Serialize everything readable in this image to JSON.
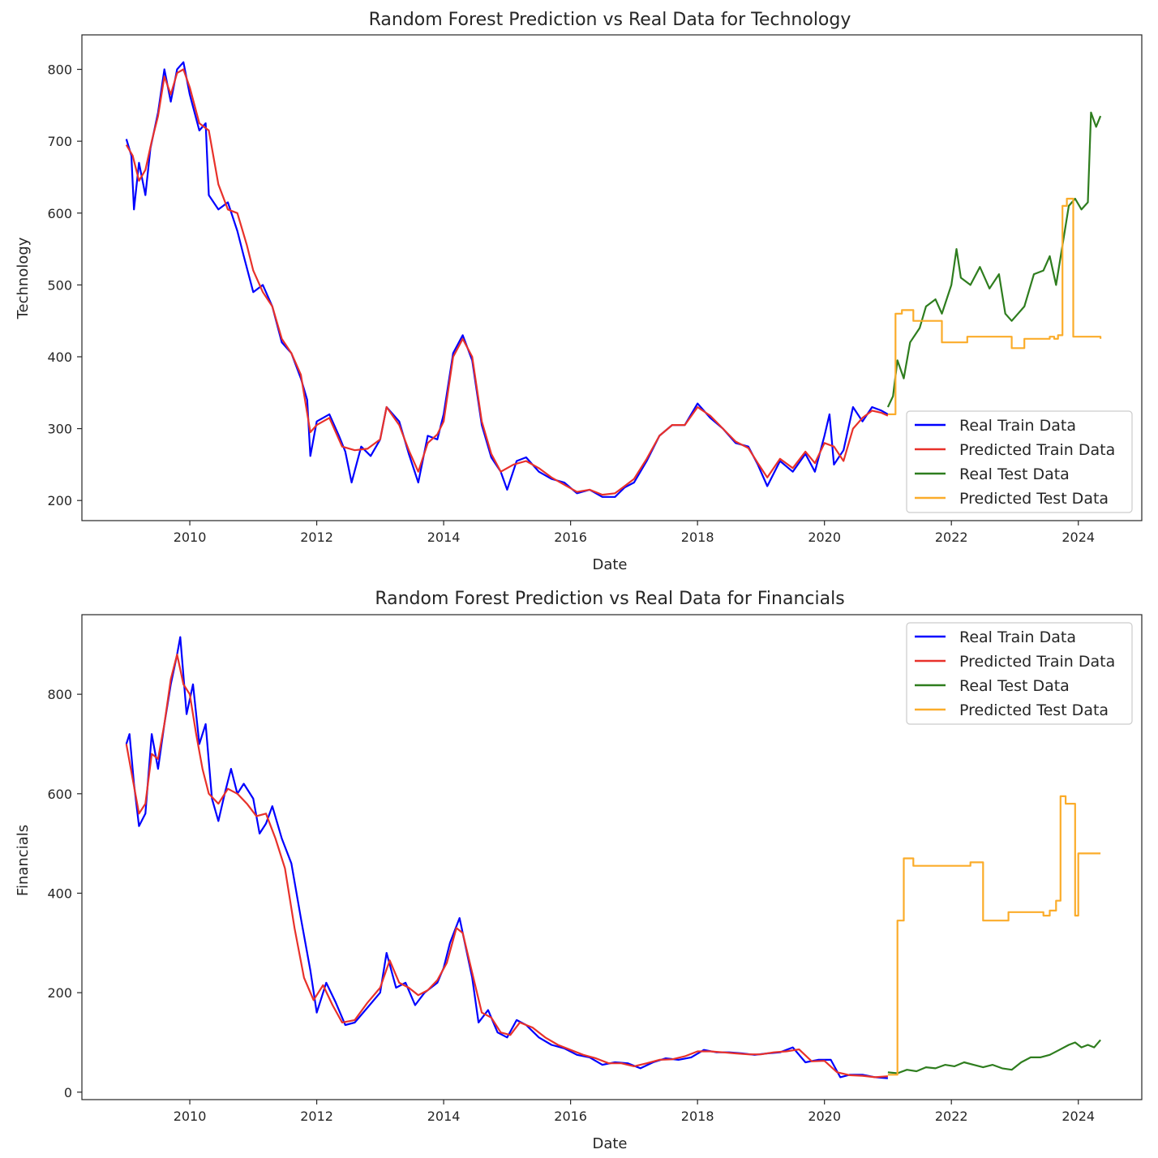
{
  "colors": {
    "real_train": "#0000ff",
    "pred_train": "#e8312a",
    "real_test": "#2e7d1e",
    "pred_test": "#fbac2a",
    "frame": "#262626",
    "legend_border": "#cccccc"
  },
  "chart_data": [
    {
      "type": "line",
      "title": "Random Forest Prediction vs Real Data for Technology",
      "xlabel": "Date",
      "ylabel": "Technology",
      "xlim": [
        2008.3,
        2025.0
      ],
      "ylim": [
        172,
        848
      ],
      "xticks": [
        2010,
        2012,
        2014,
        2016,
        2018,
        2020,
        2022,
        2024
      ],
      "yticks": [
        200,
        300,
        400,
        500,
        600,
        700,
        800
      ],
      "grid": false,
      "legend_position": "lower right",
      "legend": [
        "Real Train Data",
        "Predicted Train Data",
        "Real Test Data",
        "Predicted Test Data"
      ],
      "series": [
        {
          "name": "Real Train Data",
          "color_key": "real_train",
          "x": [
            2009.0,
            2009.08,
            2009.12,
            2009.2,
            2009.3,
            2009.38,
            2009.5,
            2009.6,
            2009.7,
            2009.8,
            2009.9,
            2010.0,
            2010.15,
            2010.25,
            2010.3,
            2010.45,
            2010.6,
            2010.75,
            2010.85,
            2011.0,
            2011.15,
            2011.3,
            2011.45,
            2011.6,
            2011.75,
            2011.85,
            2011.9,
            2012.0,
            2012.2,
            2012.35,
            2012.45,
            2012.55,
            2012.7,
            2012.85,
            2013.0,
            2013.1,
            2013.3,
            2013.45,
            2013.6,
            2013.75,
            2013.9,
            2014.0,
            2014.15,
            2014.3,
            2014.45,
            2014.6,
            2014.75,
            2014.9,
            2015.0,
            2015.15,
            2015.3,
            2015.5,
            2015.7,
            2015.9,
            2016.1,
            2016.3,
            2016.5,
            2016.7,
            2016.85,
            2017.0,
            2017.2,
            2017.4,
            2017.6,
            2017.8,
            2018.0,
            2018.2,
            2018.4,
            2018.6,
            2018.8,
            2018.95,
            2019.1,
            2019.3,
            2019.5,
            2019.7,
            2019.85,
            2020.0,
            2020.08,
            2020.15,
            2020.3,
            2020.45,
            2020.6,
            2020.75,
            2020.9,
            2021.0
          ],
          "y": [
            703,
            680,
            605,
            670,
            625,
            690,
            740,
            800,
            755,
            800,
            810,
            765,
            715,
            725,
            625,
            605,
            615,
            575,
            540,
            490,
            500,
            470,
            420,
            405,
            370,
            340,
            262,
            310,
            320,
            290,
            268,
            225,
            275,
            262,
            285,
            330,
            310,
            265,
            225,
            290,
            285,
            320,
            405,
            430,
            395,
            305,
            260,
            240,
            215,
            255,
            260,
            240,
            230,
            225,
            210,
            215,
            205,
            205,
            218,
            225,
            255,
            290,
            305,
            305,
            335,
            315,
            300,
            280,
            275,
            250,
            220,
            255,
            240,
            265,
            240,
            290,
            320,
            250,
            270,
            330,
            310,
            330,
            325,
            320
          ]
        },
        {
          "name": "Predicted Train Data",
          "color_key": "pred_train",
          "x": [
            2009.0,
            2009.1,
            2009.2,
            2009.3,
            2009.4,
            2009.5,
            2009.6,
            2009.7,
            2009.8,
            2009.9,
            2010.0,
            2010.15,
            2010.3,
            2010.45,
            2010.6,
            2010.75,
            2010.9,
            2011.0,
            2011.15,
            2011.3,
            2011.45,
            2011.6,
            2011.75,
            2011.9,
            2012.0,
            2012.2,
            2012.4,
            2012.6,
            2012.8,
            2013.0,
            2013.1,
            2013.3,
            2013.45,
            2013.6,
            2013.75,
            2013.9,
            2014.0,
            2014.15,
            2014.3,
            2014.45,
            2014.6,
            2014.75,
            2014.9,
            2015.1,
            2015.3,
            2015.5,
            2015.7,
            2015.9,
            2016.1,
            2016.3,
            2016.5,
            2016.7,
            2016.85,
            2017.0,
            2017.2,
            2017.4,
            2017.6,
            2017.8,
            2018.0,
            2018.2,
            2018.4,
            2018.6,
            2018.8,
            2018.95,
            2019.1,
            2019.3,
            2019.5,
            2019.7,
            2019.85,
            2020.0,
            2020.15,
            2020.3,
            2020.45,
            2020.6,
            2020.75,
            2020.9,
            2021.0
          ],
          "y": [
            695,
            680,
            645,
            660,
            700,
            735,
            790,
            765,
            795,
            800,
            775,
            725,
            715,
            640,
            605,
            600,
            555,
            520,
            490,
            470,
            425,
            405,
            375,
            295,
            305,
            315,
            275,
            270,
            272,
            285,
            330,
            305,
            270,
            240,
            280,
            292,
            310,
            400,
            425,
            400,
            310,
            265,
            240,
            250,
            255,
            245,
            232,
            222,
            212,
            215,
            208,
            210,
            220,
            230,
            258,
            290,
            305,
            305,
            330,
            318,
            300,
            282,
            273,
            252,
            232,
            258,
            245,
            268,
            252,
            280,
            275,
            255,
            300,
            315,
            325,
            322,
            318
          ]
        },
        {
          "name": "Real Test Data",
          "color_key": "real_test",
          "x": [
            2021.0,
            2021.08,
            2021.15,
            2021.25,
            2021.35,
            2021.5,
            2021.6,
            2021.75,
            2021.85,
            2022.0,
            2022.08,
            2022.15,
            2022.3,
            2022.45,
            2022.6,
            2022.75,
            2022.85,
            2022.95,
            2023.05,
            2023.15,
            2023.3,
            2023.45,
            2023.55,
            2023.65,
            2023.75,
            2023.85,
            2023.95,
            2024.05,
            2024.15,
            2024.2,
            2024.28,
            2024.35
          ],
          "y": [
            330,
            345,
            395,
            370,
            420,
            440,
            470,
            480,
            460,
            500,
            550,
            510,
            500,
            525,
            495,
            515,
            460,
            450,
            460,
            470,
            515,
            520,
            540,
            500,
            555,
            610,
            620,
            605,
            615,
            740,
            720,
            735
          ]
        },
        {
          "name": "Predicted Test Data",
          "color_key": "pred_test",
          "step": true,
          "x": [
            2021.0,
            2021.12,
            2021.22,
            2021.4,
            2021.75,
            2021.85,
            2022.05,
            2022.25,
            2022.7,
            2022.95,
            2023.15,
            2023.55,
            2023.62,
            2023.68,
            2023.75,
            2023.82,
            2023.92,
            2024.35
          ],
          "y": [
            320,
            460,
            465,
            450,
            450,
            420,
            420,
            428,
            428,
            412,
            425,
            428,
            425,
            430,
            610,
            620,
            428,
            425
          ]
        }
      ]
    },
    {
      "type": "line",
      "title": "Random Forest Prediction vs Real Data for Financials",
      "xlabel": "Date",
      "ylabel": "Financials",
      "xlim": [
        2008.3,
        2025.0
      ],
      "ylim": [
        -15,
        960
      ],
      "xticks": [
        2010,
        2012,
        2014,
        2016,
        2018,
        2020,
        2022,
        2024
      ],
      "yticks": [
        0,
        200,
        400,
        600,
        800
      ],
      "grid": false,
      "legend_position": "upper right",
      "legend": [
        "Real Train Data",
        "Predicted Train Data",
        "Real Test Data",
        "Predicted Test Data"
      ],
      "series": [
        {
          "name": "Real Train Data",
          "color_key": "real_train",
          "x": [
            2009.0,
            2009.05,
            2009.12,
            2009.2,
            2009.3,
            2009.4,
            2009.5,
            2009.6,
            2009.7,
            2009.8,
            2009.85,
            2009.95,
            2010.05,
            2010.15,
            2010.25,
            2010.35,
            2010.45,
            2010.55,
            2010.65,
            2010.75,
            2010.85,
            2011.0,
            2011.1,
            2011.2,
            2011.3,
            2011.45,
            2011.6,
            2011.75,
            2011.9,
            2012.0,
            2012.15,
            2012.3,
            2012.45,
            2012.6,
            2012.8,
            2013.0,
            2013.1,
            2013.25,
            2013.4,
            2013.55,
            2013.7,
            2013.9,
            2014.0,
            2014.1,
            2014.25,
            2014.35,
            2014.45,
            2014.55,
            2014.7,
            2014.85,
            2015.0,
            2015.15,
            2015.3,
            2015.5,
            2015.7,
            2015.9,
            2016.1,
            2016.3,
            2016.5,
            2016.7,
            2016.9,
            2017.1,
            2017.3,
            2017.5,
            2017.7,
            2017.9,
            2018.1,
            2018.3,
            2018.5,
            2018.7,
            2018.9,
            2019.1,
            2019.3,
            2019.5,
            2019.7,
            2019.9,
            2020.1,
            2020.25,
            2020.4,
            2020.6,
            2020.8,
            2021.0
          ],
          "y": [
            700,
            720,
            620,
            535,
            560,
            720,
            650,
            740,
            820,
            880,
            915,
            760,
            820,
            700,
            740,
            590,
            545,
            600,
            650,
            600,
            620,
            590,
            520,
            540,
            575,
            510,
            460,
            350,
            245,
            160,
            220,
            180,
            135,
            140,
            170,
            200,
            280,
            210,
            220,
            175,
            200,
            220,
            250,
            300,
            350,
            290,
            230,
            140,
            165,
            120,
            110,
            145,
            135,
            110,
            95,
            88,
            75,
            70,
            55,
            60,
            58,
            48,
            60,
            68,
            65,
            70,
            85,
            80,
            80,
            78,
            75,
            78,
            80,
            90,
            60,
            65,
            65,
            30,
            35,
            35,
            30,
            28
          ]
        },
        {
          "name": "Predicted Train Data",
          "color_key": "pred_train",
          "x": [
            2009.0,
            2009.1,
            2009.2,
            2009.3,
            2009.4,
            2009.5,
            2009.6,
            2009.7,
            2009.8,
            2009.9,
            2010.0,
            2010.1,
            2010.2,
            2010.3,
            2010.45,
            2010.6,
            2010.75,
            2010.9,
            2011.05,
            2011.2,
            2011.35,
            2011.5,
            2011.65,
            2011.8,
            2011.95,
            2012.1,
            2012.25,
            2012.4,
            2012.6,
            2012.8,
            2013.0,
            2013.15,
            2013.3,
            2013.45,
            2013.6,
            2013.75,
            2013.9,
            2014.05,
            2014.2,
            2014.3,
            2014.45,
            2014.6,
            2014.75,
            2014.9,
            2015.05,
            2015.2,
            2015.4,
            2015.6,
            2015.8,
            2016.0,
            2016.2,
            2016.4,
            2016.6,
            2016.8,
            2017.0,
            2017.2,
            2017.4,
            2017.6,
            2017.8,
            2018.0,
            2018.2,
            2018.4,
            2018.6,
            2018.8,
            2019.0,
            2019.2,
            2019.4,
            2019.6,
            2019.8,
            2020.0,
            2020.2,
            2020.4,
            2020.6,
            2020.8,
            2021.0
          ],
          "y": [
            700,
            630,
            560,
            580,
            680,
            670,
            740,
            830,
            880,
            820,
            800,
            720,
            650,
            600,
            580,
            610,
            600,
            580,
            555,
            560,
            510,
            450,
            330,
            230,
            185,
            215,
            175,
            140,
            145,
            180,
            210,
            265,
            220,
            210,
            195,
            205,
            225,
            260,
            330,
            320,
            240,
            160,
            150,
            120,
            115,
            140,
            130,
            110,
            95,
            85,
            75,
            68,
            58,
            58,
            52,
            58,
            65,
            66,
            72,
            82,
            82,
            80,
            78,
            76,
            76,
            80,
            82,
            86,
            62,
            63,
            40,
            34,
            33,
            30,
            32
          ]
        },
        {
          "name": "Real Test Data",
          "color_key": "real_test",
          "x": [
            2021.0,
            2021.15,
            2021.3,
            2021.45,
            2021.6,
            2021.75,
            2021.9,
            2022.05,
            2022.2,
            2022.35,
            2022.5,
            2022.65,
            2022.8,
            2022.95,
            2023.1,
            2023.25,
            2023.4,
            2023.55,
            2023.7,
            2023.85,
            2023.95,
            2024.05,
            2024.15,
            2024.25,
            2024.35
          ],
          "y": [
            40,
            38,
            45,
            42,
            50,
            48,
            55,
            52,
            60,
            55,
            50,
            55,
            48,
            45,
            60,
            70,
            70,
            75,
            85,
            95,
            100,
            90,
            95,
            90,
            105
          ]
        },
        {
          "name": "Predicted Test Data",
          "color_key": "pred_test",
          "step": true,
          "x": [
            2021.0,
            2021.15,
            2021.25,
            2021.4,
            2021.85,
            2022.3,
            2022.5,
            2022.9,
            2023.25,
            2023.45,
            2023.55,
            2023.65,
            2023.72,
            2023.8,
            2023.88,
            2023.95,
            2024.0,
            2024.35
          ],
          "y": [
            35,
            345,
            470,
            455,
            455,
            462,
            345,
            362,
            362,
            355,
            365,
            385,
            595,
            580,
            580,
            355,
            480,
            480
          ]
        }
      ]
    }
  ]
}
